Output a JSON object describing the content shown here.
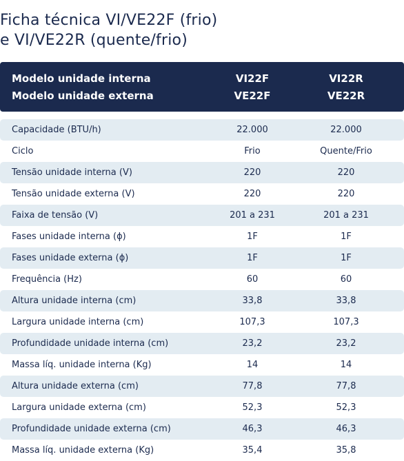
{
  "title": {
    "line1": "Ficha técnica VI/VE22F (frio)",
    "line2": "e VI/VE22R (quente/frio)"
  },
  "header": {
    "row1": {
      "label": "Modelo unidade interna",
      "col1": "VI22F",
      "col2": "VI22R"
    },
    "row2": {
      "label": "Modelo unidade externa",
      "col1": "VE22F",
      "col2": "VE22R"
    }
  },
  "colors": {
    "header_bg": "#1b2a4e",
    "row_shade": "#e3ecf2",
    "text": "#1b2a4e"
  },
  "rows": [
    {
      "label": "Capacidade (BTU/h)",
      "col1": "22.000",
      "col2": "22.000"
    },
    {
      "label": "Ciclo",
      "col1": "Frio",
      "col2": "Quente/Frio"
    },
    {
      "label": "Tensão unidade interna (V)",
      "col1": "220",
      "col2": "220"
    },
    {
      "label": "Tensão unidade externa (V)",
      "col1": "220",
      "col2": "220"
    },
    {
      "label": "Faixa de tensão (V)",
      "col1": "201 a 231",
      "col2": "201 a 231"
    },
    {
      "label": "Fases unidade interna (ϕ)",
      "col1": "1F",
      "col2": "1F"
    },
    {
      "label": "Fases unidade externa (ϕ)",
      "col1": "1F",
      "col2": "1F"
    },
    {
      "label": "Frequência (Hz)",
      "col1": "60",
      "col2": "60"
    },
    {
      "label": "Altura unidade interna (cm)",
      "col1": "33,8",
      "col2": "33,8"
    },
    {
      "label": "Largura unidade interna (cm)",
      "col1": "107,3",
      "col2": "107,3"
    },
    {
      "label": "Profundidade unidade interna (cm)",
      "col1": "23,2",
      "col2": "23,2"
    },
    {
      "label": "Massa líq. unidade interna (Kg)",
      "col1": "14",
      "col2": "14"
    },
    {
      "label": "Altura unidade externa (cm)",
      "col1": "77,8",
      "col2": "77,8"
    },
    {
      "label": "Largura unidade externa (cm)",
      "col1": "52,3",
      "col2": "52,3"
    },
    {
      "label": "Profundidade unidade externa (cm)",
      "col1": "46,3",
      "col2": "46,3"
    },
    {
      "label": "Massa líq. unidade externa (Kg)",
      "col1": "35,4",
      "col2": "35,8"
    }
  ]
}
